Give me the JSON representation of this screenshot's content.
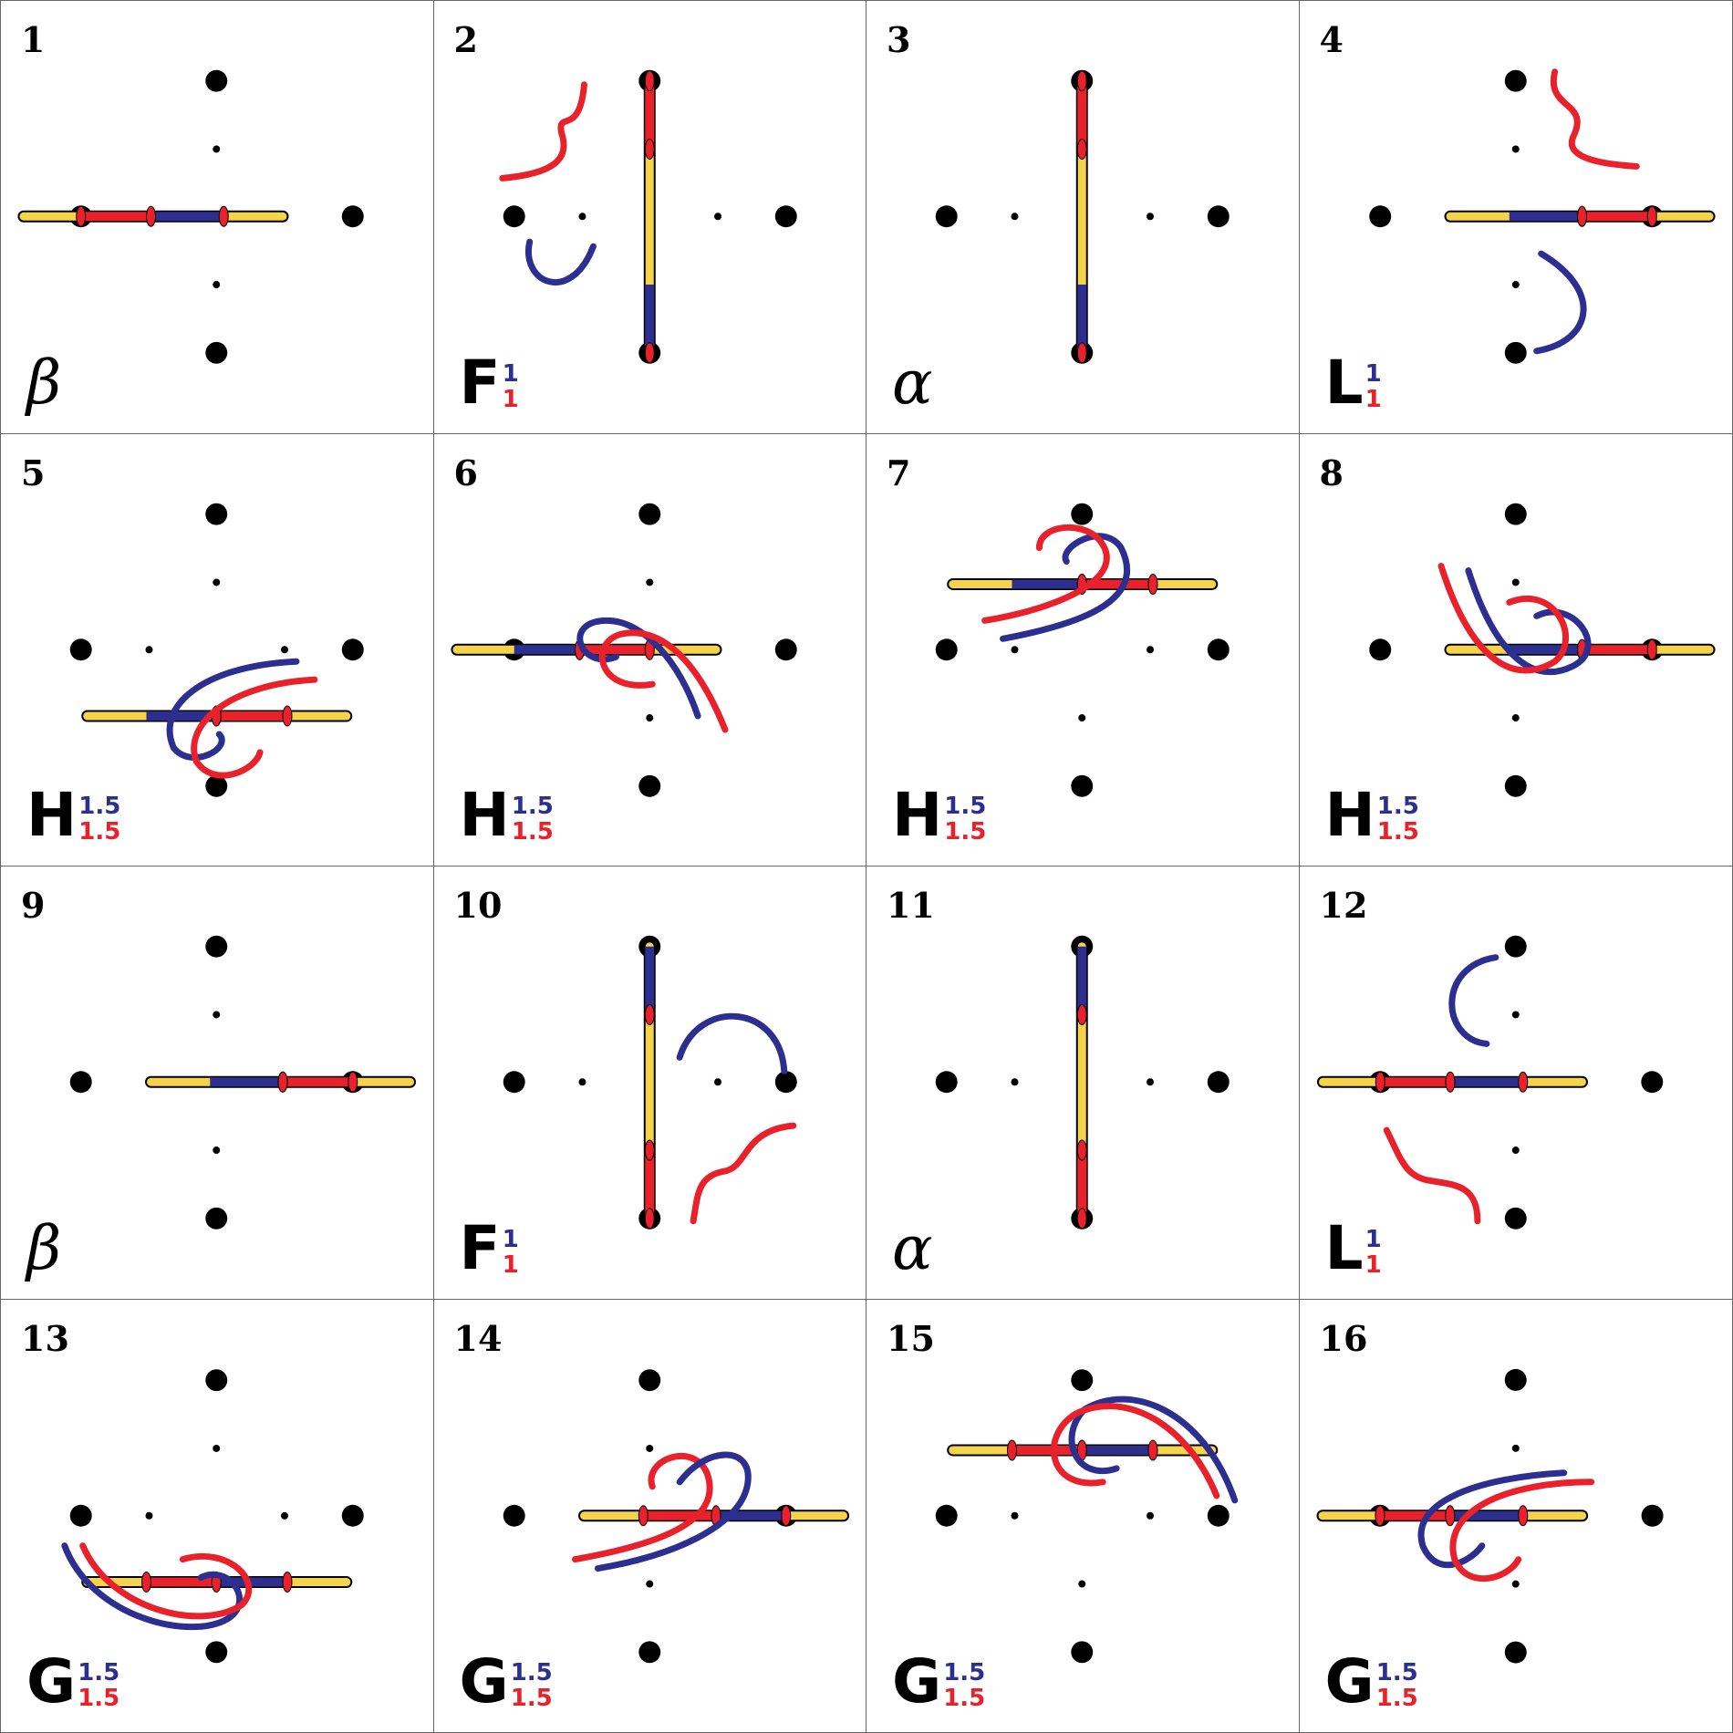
{
  "colors": {
    "blue": "#2c2f8f",
    "red": "#e8212a",
    "yellow": "#f5d44c",
    "black": "#000000"
  },
  "panels": [
    {
      "number": "1",
      "symbol": "β",
      "sup": "",
      "sub": "",
      "stick": "h",
      "arrows": "none"
    },
    {
      "number": "2",
      "symbol": "F",
      "sup": "1",
      "sub": "1",
      "stick": "v",
      "arrows": "flip-up"
    },
    {
      "number": "3",
      "symbol": "α",
      "sup": "",
      "sub": "",
      "stick": "v",
      "arrows": "none"
    },
    {
      "number": "4",
      "symbol": "L",
      "sup": "1",
      "sub": "1",
      "stick": "h",
      "arrows": "land-right"
    },
    {
      "number": "5",
      "symbol": "H",
      "sup": "1.5",
      "sub": "1.5",
      "stick": "h",
      "arrows": "hop"
    },
    {
      "number": "6",
      "symbol": "H",
      "sup": "1.5",
      "sub": "1.5",
      "stick": "h",
      "arrows": "hop"
    },
    {
      "number": "7",
      "symbol": "H",
      "sup": "1.5",
      "sub": "1.5",
      "stick": "h",
      "arrows": "hop"
    },
    {
      "number": "8",
      "symbol": "H",
      "sup": "1.5",
      "sub": "1.5",
      "stick": "h",
      "arrows": "hop"
    },
    {
      "number": "9",
      "symbol": "β",
      "sup": "",
      "sub": "",
      "stick": "h",
      "arrows": "none"
    },
    {
      "number": "10",
      "symbol": "F",
      "sup": "1",
      "sub": "1",
      "stick": "v",
      "arrows": "flip-down"
    },
    {
      "number": "11",
      "symbol": "α",
      "sup": "",
      "sub": "",
      "stick": "v",
      "arrows": "none"
    },
    {
      "number": "12",
      "symbol": "L",
      "sup": "1",
      "sub": "1",
      "stick": "h",
      "arrows": "land-left"
    },
    {
      "number": "13",
      "symbol": "G",
      "sup": "1.5",
      "sub": "1.5",
      "stick": "h",
      "arrows": "glide"
    },
    {
      "number": "14",
      "symbol": "G",
      "sup": "1.5",
      "sub": "1.5",
      "stick": "h",
      "arrows": "glide"
    },
    {
      "number": "15",
      "symbol": "G",
      "sup": "1.5",
      "sub": "1.5",
      "stick": "h",
      "arrows": "glide"
    },
    {
      "number": "16",
      "symbol": "G",
      "sup": "1.5",
      "sub": "1.5",
      "stick": "h",
      "arrows": "glide"
    }
  ]
}
